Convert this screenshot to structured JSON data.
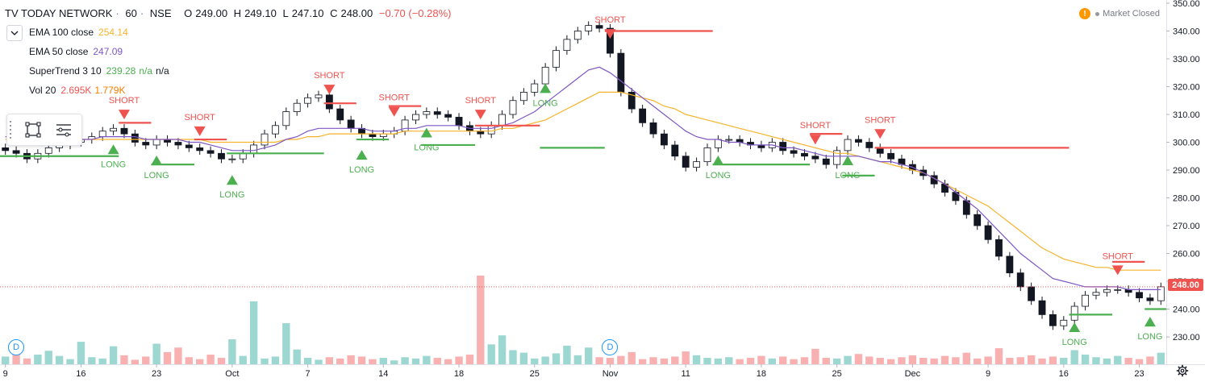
{
  "header": {
    "symbol": "TV TODAY NETWORK",
    "interval": "60",
    "exchange": "NSE",
    "ohlc": [
      {
        "k": "O",
        "v": "249.00"
      },
      {
        "k": "H",
        "v": "249.10"
      },
      {
        "k": "L",
        "v": "247.10"
      },
      {
        "k": "C",
        "v": "248.00"
      }
    ],
    "change": "−0.70 (−0.28%)"
  },
  "indicators": [
    {
      "name": "EMA 100 close",
      "value": "254.14",
      "color": "#f7b32b"
    },
    {
      "name": "EMA 50 close",
      "value": "247.09",
      "color": "#7e57c2"
    },
    {
      "name": "SuperTrend 3 10",
      "value": "239.28",
      "extra": "n/a",
      "extra2": "n/a",
      "color": "#4caf50"
    },
    {
      "name": "Vol 20",
      "value": "2.695K",
      "value2": "1.779K",
      "color": "#ef5350",
      "color2": "#f57c00"
    }
  ],
  "status": {
    "market": "Market Closed",
    "warn": "!"
  },
  "last_price": "248.00",
  "icons": {
    "toolbar": [
      "rectangle-icon",
      "lines-icon"
    ],
    "settings": "gear-icon",
    "collapse": "chevron-down-icon"
  },
  "markers": {
    "dividend_label": "D"
  },
  "colors": {
    "up": "#26a69a",
    "down": "#ef5350",
    "long": "#4caf50",
    "short": "#ef5350",
    "ema100": "#f7b32b",
    "ema50": "#7e57c2"
  },
  "chart_data": {
    "type": "line",
    "ylim": [
      225,
      350
    ],
    "y_ticks": [
      230,
      240,
      250,
      260,
      270,
      280,
      290,
      300,
      310,
      320,
      330,
      340,
      350
    ],
    "x_tick_labels": [
      "9",
      "16",
      "23",
      "Oct",
      "7",
      "14",
      "18",
      "25",
      "Nov",
      "11",
      "18",
      "25",
      "Dec",
      "9",
      "16",
      "23"
    ],
    "x_tick_pos": [
      0.5,
      7.5,
      14.5,
      21.5,
      28.5,
      35.5,
      42.5,
      49.5,
      56.5,
      63.5,
      70.5,
      77.5,
      84.5,
      91.5,
      98.5,
      105.5
    ],
    "n_bars": 108,
    "close": [
      297,
      296,
      294,
      296,
      298,
      299,
      300,
      301,
      302,
      304,
      305,
      303,
      300,
      299,
      301,
      300,
      299,
      298,
      297,
      296,
      294,
      294,
      296,
      299,
      303,
      306,
      311,
      314,
      316,
      317,
      312,
      308,
      305,
      303,
      302,
      303,
      304,
      308,
      310,
      311,
      310,
      309,
      306,
      304,
      303,
      306,
      310,
      315,
      318,
      321,
      327,
      333,
      337,
      340,
      342,
      341,
      332,
      318,
      312,
      307,
      303,
      299,
      295,
      291,
      293,
      298,
      301,
      301,
      300,
      299,
      298,
      300,
      297,
      296,
      295,
      294,
      292,
      297,
      301,
      300,
      298,
      296,
      294,
      292,
      290,
      288,
      285,
      282,
      279,
      274,
      270,
      265,
      259,
      253,
      248,
      243,
      238,
      234,
      236,
      241,
      245,
      246,
      247,
      247,
      246,
      244,
      243,
      248
    ],
    "volume": [
      1.2,
      1.8,
      0.9,
      1.5,
      2.1,
      1.3,
      0.8,
      3.5,
      1.1,
      0.9,
      2.8,
      1.4,
      0.7,
      1.2,
      3.2,
      1.9,
      2.6,
      1.1,
      0.8,
      1.5,
      1.0,
      3.9,
      1.3,
      9.8,
      0.9,
      1.2,
      6.4,
      2.3,
      1.0,
      0.7,
      1.1,
      0.9,
      1.4,
      1.2,
      0.8,
      1.0,
      0.6,
      1.1,
      0.9,
      1.3,
      1.0,
      0.8,
      1.2,
      1.5,
      13.8,
      3.1,
      4.5,
      2.2,
      1.8,
      0.9,
      1.2,
      1.7,
      2.9,
      1.4,
      2.6,
      1.1,
      1.0,
      1.3,
      1.9,
      0.8,
      1.1,
      0.9,
      1.2,
      2.0,
      1.4,
      1.0,
      0.9,
      1.1,
      0.8,
      1.0,
      1.3,
      0.9,
      1.2,
      0.8,
      1.1,
      2.4,
      1.0,
      0.9,
      1.3,
      1.6,
      1.2,
      1.0,
      0.8,
      1.1,
      1.4,
      1.0,
      0.9,
      1.3,
      1.1,
      1.8,
      0.9,
      1.2,
      2.5,
      1.0,
      1.1,
      1.4,
      0.9,
      1.2,
      1.0,
      2.2,
      1.5,
      1.1,
      0.9,
      1.3,
      1.0,
      0.8,
      1.2,
      1.8
    ],
    "ema100": [
      301,
      301,
      301,
      301,
      301,
      301,
      301,
      301,
      301,
      301,
      301,
      301,
      301,
      301,
      301,
      301,
      301,
      301,
      301,
      300,
      300,
      300,
      300,
      300,
      300,
      300,
      301,
      301,
      302,
      302,
      303,
      303,
      303,
      303,
      303,
      303,
      303,
      304,
      304,
      304,
      304,
      304,
      304,
      304,
      304,
      304,
      305,
      305,
      306,
      307,
      308,
      310,
      312,
      314,
      316,
      318,
      318,
      318,
      317,
      316,
      315,
      313,
      312,
      310,
      309,
      308,
      307,
      306,
      305,
      304,
      303,
      302,
      301,
      300,
      299,
      298,
      297,
      296,
      296,
      295,
      294,
      293,
      292,
      291,
      290,
      289,
      287,
      285,
      283,
      281,
      279,
      277,
      274,
      271,
      268,
      265,
      262,
      260,
      258,
      257,
      256,
      255,
      255,
      254,
      254,
      254,
      254,
      254
    ],
    "ema50": [
      302,
      302,
      301,
      301,
      301,
      301,
      301,
      301,
      301,
      302,
      302,
      302,
      302,
      301,
      301,
      301,
      301,
      300,
      300,
      299,
      298,
      297,
      297,
      297,
      298,
      299,
      301,
      302,
      304,
      305,
      305,
      305,
      305,
      305,
      304,
      304,
      304,
      305,
      305,
      306,
      306,
      306,
      306,
      305,
      305,
      305,
      306,
      307,
      309,
      311,
      314,
      317,
      320,
      323,
      326,
      327,
      325,
      322,
      319,
      316,
      313,
      310,
      307,
      304,
      302,
      301,
      301,
      300,
      300,
      299,
      299,
      299,
      298,
      298,
      297,
      296,
      295,
      295,
      295,
      295,
      294,
      293,
      293,
      292,
      291,
      289,
      287,
      285,
      282,
      279,
      276,
      272,
      268,
      264,
      260,
      257,
      254,
      251,
      250,
      249,
      248,
      248,
      248,
      248,
      247,
      247,
      247,
      247
    ],
    "supertrend": [
      {
        "x0": 0,
        "x1": 10,
        "side": "long",
        "level": 295
      },
      {
        "x0": 11,
        "x1": 13,
        "side": "short",
        "level": 307
      },
      {
        "x0": 14,
        "x1": 17,
        "side": "long",
        "level": 292
      },
      {
        "x0": 18,
        "x1": 20,
        "side": "short",
        "level": 301
      },
      {
        "x0": 21,
        "x1": 29,
        "side": "long",
        "level": 296
      },
      {
        "x0": 30,
        "x1": 32,
        "side": "short",
        "level": 314
      },
      {
        "x0": 33,
        "x1": 35,
        "side": "long",
        "level": 301
      },
      {
        "x0": 36,
        "x1": 38,
        "side": "short",
        "level": 313
      },
      {
        "x0": 39,
        "x1": 43,
        "side": "long",
        "level": 299
      },
      {
        "x0": 44,
        "x1": 49,
        "side": "short",
        "level": 306
      },
      {
        "x0": 50,
        "x1": 55,
        "side": "long",
        "level": 298
      },
      {
        "x0": 56,
        "x1": 65,
        "side": "short",
        "level": 340
      },
      {
        "x0": 66,
        "x1": 74,
        "side": "long",
        "level": 292
      },
      {
        "x0": 75,
        "x1": 77,
        "side": "short",
        "level": 303
      },
      {
        "x0": 78,
        "x1": 80,
        "side": "long",
        "level": 288
      },
      {
        "x0": 81,
        "x1": 98,
        "side": "short",
        "level": 298
      },
      {
        "x0": 99,
        "x1": 102,
        "side": "long",
        "level": 238
      },
      {
        "x0": 103,
        "x1": 105,
        "side": "short",
        "level": 257
      },
      {
        "x0": 106,
        "x1": 107,
        "side": "long",
        "level": 240
      }
    ],
    "signals": [
      {
        "x": 10,
        "type": "long",
        "label": "LONG"
      },
      {
        "x": 11,
        "type": "short",
        "label": "SHORT"
      },
      {
        "x": 14,
        "type": "long",
        "label": "LONG"
      },
      {
        "x": 18,
        "type": "short",
        "label": "SHORT"
      },
      {
        "x": 21,
        "type": "long",
        "label": "LONG"
      },
      {
        "x": 30,
        "type": "short",
        "label": "SHORT"
      },
      {
        "x": 33,
        "type": "long",
        "label": "LONG"
      },
      {
        "x": 36,
        "type": "short",
        "label": "SHORT"
      },
      {
        "x": 39,
        "type": "long",
        "label": "LONG"
      },
      {
        "x": 44,
        "type": "short",
        "label": "SHORT"
      },
      {
        "x": 50,
        "type": "long",
        "label": "LONG"
      },
      {
        "x": 56,
        "type": "short",
        "label": "SHORT"
      },
      {
        "x": 66,
        "type": "long",
        "label": "LONG"
      },
      {
        "x": 75,
        "type": "short",
        "label": "SHORT"
      },
      {
        "x": 78,
        "type": "long",
        "label": "LONG"
      },
      {
        "x": 81,
        "type": "short",
        "label": "SHORT"
      },
      {
        "x": 99,
        "type": "long",
        "label": "LONG"
      },
      {
        "x": 103,
        "type": "short",
        "label": "SHORT"
      },
      {
        "x": 106,
        "type": "long",
        "label": "LONG"
      }
    ],
    "dividend_bars": [
      1,
      56
    ],
    "last_price": 248.0
  }
}
